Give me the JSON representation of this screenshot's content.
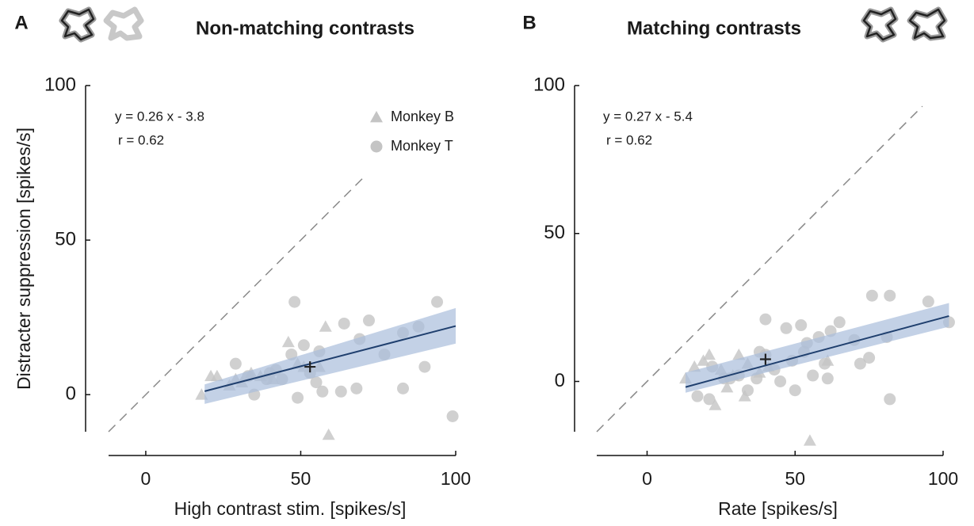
{
  "chart_data": [
    {
      "type": "scatter",
      "panel": "A",
      "title": "Non-matching contrasts",
      "x_label": "High contrast stim. [spikes/s]",
      "y_label": "Distracter suppression [spikes/s]",
      "annotations": [
        "y = 0.26 x - 3.8",
        "r = 0.62"
      ],
      "legend": "upper right",
      "xlim": [
        -12,
        100
      ],
      "ylim": [
        -12,
        100
      ],
      "xticks": [
        0,
        50,
        100
      ],
      "yticks": [
        0,
        50,
        100
      ],
      "series": [
        {
          "name": "Monkey B",
          "marker": "triangle",
          "color": "#c4c4c4",
          "x": [
            18,
            21,
            23,
            27,
            31,
            34,
            37,
            41,
            46,
            51,
            58,
            59,
            56,
            49,
            29
          ],
          "values": [
            0,
            6,
            6,
            3,
            4,
            7,
            6,
            5,
            17,
            9,
            22,
            -13,
            9,
            10,
            5
          ]
        },
        {
          "name": "Monkey T",
          "marker": "circle",
          "color": "#c4c4c4",
          "x": [
            29,
            33,
            35,
            39,
            42,
            47,
            48,
            49,
            51,
            53,
            55,
            57,
            56,
            63,
            64,
            68,
            69,
            72,
            77,
            83,
            83,
            88,
            90,
            94,
            99,
            44,
            40
          ],
          "values": [
            10,
            6,
            0,
            5,
            8,
            13,
            30,
            -1,
            16,
            7,
            4,
            1,
            14,
            1,
            23,
            2,
            18,
            24,
            13,
            2,
            20,
            22,
            9,
            30,
            -7,
            5,
            7
          ]
        }
      ],
      "fit": {
        "color": "#1f3f6e",
        "band_color": "#a9bedb",
        "x": [
          19,
          100
        ],
        "y": [
          1.1,
          22.2
        ],
        "band_lower": [
          -3,
          16.5
        ],
        "band_upper": [
          3.3,
          28
        ]
      },
      "reference_line": {
        "x": [
          -12,
          70
        ],
        "y": [
          -12,
          70
        ]
      },
      "mean": {
        "x": 53,
        "y": 9
      }
    },
    {
      "type": "scatter",
      "panel": "B",
      "title": "Matching contrasts",
      "x_label": "Rate [spikes/s]",
      "annotations": [
        "y = 0.27 x - 5.4",
        "r = 0.62"
      ],
      "xlim": [
        -17,
        100
      ],
      "ylim": [
        -17,
        100
      ],
      "xticks": [
        0,
        50,
        100
      ],
      "yticks": [
        0,
        50,
        100
      ],
      "series": [
        {
          "marker": "triangle",
          "color": "#c4c4c4",
          "x": [
            13,
            16,
            19,
            21,
            25,
            29,
            31,
            34,
            38,
            41,
            55,
            61,
            23,
            27,
            33
          ],
          "values": [
            1,
            5,
            7,
            9,
            4,
            2,
            9,
            6,
            3,
            5,
            -20,
            7,
            -8,
            -2,
            -5
          ]
        },
        {
          "marker": "circle",
          "color": "#c4c4c4",
          "x": [
            17,
            21,
            22,
            26,
            28,
            31,
            34,
            37,
            40,
            40,
            43,
            45,
            47,
            49,
            50,
            52,
            54,
            56,
            58,
            61,
            62,
            65,
            70,
            72,
            75,
            76,
            81,
            82,
            82,
            95,
            102,
            60,
            53,
            38
          ],
          "values": [
            -5,
            -6,
            5,
            1,
            1,
            2,
            -3,
            1,
            9,
            21,
            4,
            0,
            18,
            7,
            -3,
            19,
            13,
            2,
            15,
            1,
            17,
            20,
            14,
            6,
            8,
            29,
            15,
            29,
            -6,
            27,
            20,
            6,
            10,
            10
          ]
        }
      ],
      "fit": {
        "color": "#1f3f6e",
        "band_color": "#a9bedb",
        "x": [
          13,
          102
        ],
        "y": [
          -1.9,
          22.1
        ],
        "band_lower": [
          -3.8,
          18.5
        ],
        "band_upper": [
          3,
          26.5
        ]
      },
      "reference_line": {
        "x": [
          -17,
          93
        ],
        "y": [
          -17,
          93
        ]
      },
      "mean": {
        "x": 40,
        "y": 7.5
      }
    }
  ]
}
